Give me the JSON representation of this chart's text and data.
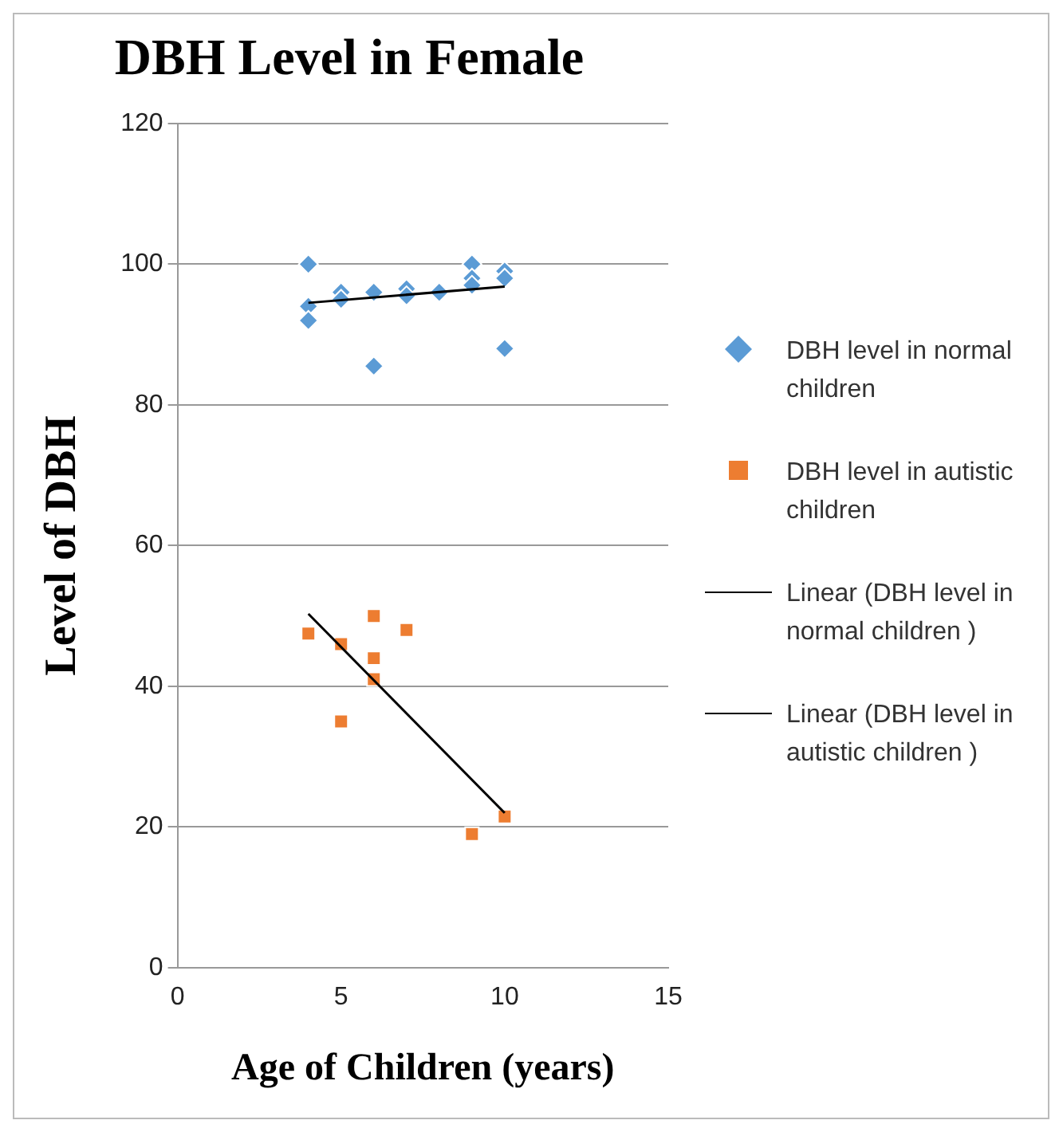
{
  "chart_data": {
    "type": "scatter",
    "title": "DBH Level in Female",
    "xlabel": "Age of Children (years)",
    "ylabel": "Level of DBH",
    "xlim": [
      0,
      15
    ],
    "xticks": [
      0,
      5,
      10,
      15
    ],
    "ylim": [
      0,
      120
    ],
    "yticks": [
      0,
      20,
      40,
      60,
      80,
      100,
      120
    ],
    "grid": "y",
    "legend": "right",
    "series": [
      {
        "name": "DBH level in normal children",
        "color": "#5b9bd5",
        "marker": "diamond",
        "x": [
          4,
          4,
          4,
          5,
          5,
          6,
          6,
          7,
          7,
          8,
          9,
          9,
          9,
          10,
          10,
          10
        ],
        "values": [
          100,
          94,
          92,
          96,
          95,
          96,
          85.5,
          96.5,
          95.5,
          96,
          100,
          98,
          97,
          99,
          98,
          88
        ]
      },
      {
        "name": "DBH level in autistic children",
        "color": "#ed7d31",
        "marker": "square",
        "x": [
          4,
          5,
          5,
          6,
          6,
          6,
          7,
          9,
          10
        ],
        "values": [
          47.5,
          46,
          35,
          50,
          44,
          41,
          48,
          19,
          21.5
        ]
      },
      {
        "name": "Linear (DBH level in normal children )",
        "type": "line",
        "color": "#000000",
        "marker": "none",
        "x": [
          4,
          10
        ],
        "values": [
          94.5,
          96.8
        ]
      },
      {
        "name": "Linear (DBH level in autistic children )",
        "type": "line",
        "color": "#000000",
        "marker": "none",
        "x": [
          4,
          10
        ],
        "values": [
          50.3,
          22
        ]
      }
    ]
  }
}
